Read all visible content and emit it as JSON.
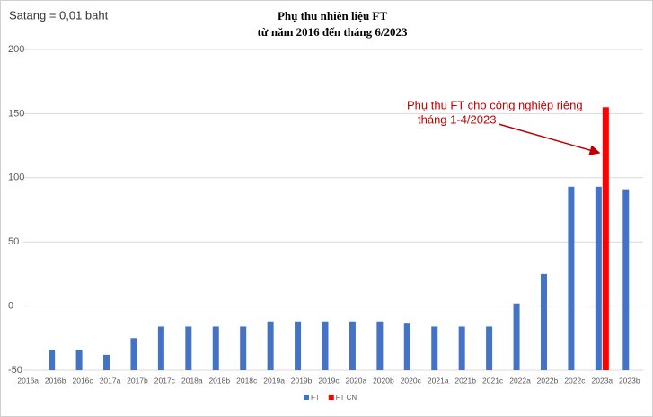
{
  "chart_data": {
    "type": "bar",
    "title": "Phụ thu nhiên liệu FT",
    "subtitle": "từ năm 2016 đến tháng 6/2023",
    "unit_note": "Satang = 0,01 baht",
    "annotation": [
      "Phụ thu FT cho công nghiệp riêng",
      "tháng 1-4/2023"
    ],
    "categories": [
      "2016a",
      "2016b",
      "2016c",
      "2017a",
      "2017b",
      "2017c",
      "2018a",
      "2018b",
      "2018c",
      "2019a",
      "2019b",
      "2019c",
      "2020a",
      "2020b",
      "2020c",
      "2021a",
      "2021b",
      "2021c",
      "2022a",
      "2022b",
      "2022c",
      "2023a",
      "2023b"
    ],
    "series": [
      {
        "name": "FT",
        "color": "#4472c4",
        "values": [
          null,
          -34,
          -34,
          -38,
          -25,
          -16,
          -16,
          -16,
          -16,
          -12,
          -12,
          -12,
          -12,
          -12,
          -13,
          -16,
          -16,
          -16,
          2,
          25,
          93,
          93,
          91
        ]
      },
      {
        "name": "FT CN",
        "color": "#ff0000",
        "values": [
          null,
          null,
          null,
          null,
          null,
          null,
          null,
          null,
          null,
          null,
          null,
          null,
          null,
          null,
          null,
          null,
          null,
          null,
          null,
          null,
          null,
          155,
          null
        ]
      }
    ],
    "ylim": [
      -50,
      200
    ],
    "yticks": [
      -50,
      0,
      50,
      100,
      150,
      200
    ],
    "grid": true,
    "legend": "bottom"
  }
}
